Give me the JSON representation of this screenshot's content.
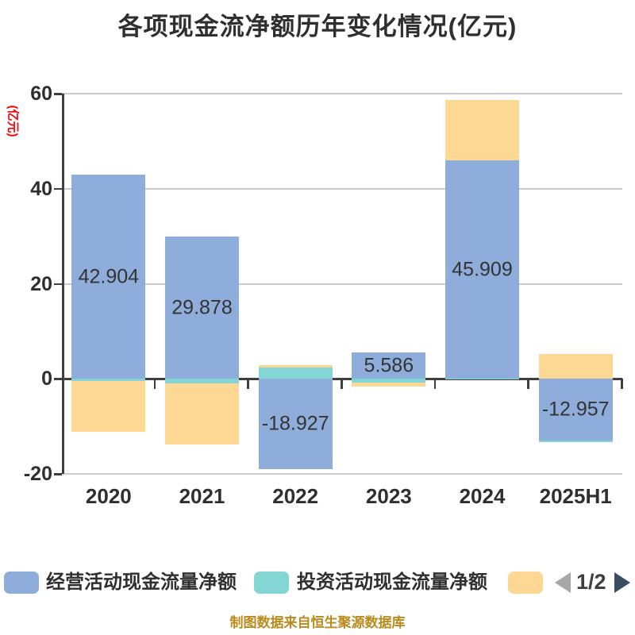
{
  "title": "各项现金流净额历年变化情况(亿元)",
  "y_axis": {
    "name": "(亿元)",
    "name_color": "#ff0000",
    "tick_labels": [
      "60",
      "40",
      "20",
      "0",
      "-20"
    ]
  },
  "chart_data": {
    "type": "bar",
    "stacked": true,
    "title": "各项现金流净额历年变化情况(亿元)",
    "ylabel": "(亿元)",
    "xlabel": "",
    "ylim": [
      -20,
      60
    ],
    "yticks": [
      60,
      40,
      20,
      0,
      -20
    ],
    "grid": true,
    "legend_position": "bottom",
    "categories": [
      "2020",
      "2021",
      "2022",
      "2023",
      "2024",
      "2025H1"
    ],
    "series": [
      {
        "name": "经营活动现金流量净额",
        "color": "#8EADDB",
        "values": [
          42.904,
          29.878,
          -18.927,
          5.586,
          45.909,
          -12.957
        ],
        "data_labels": [
          "42.904",
          "29.878",
          "-18.927",
          "5.586",
          "45.909",
          "-12.957"
        ]
      },
      {
        "name": "投资活动现金流量净额",
        "color": "#84D6D4",
        "values": [
          -0.5,
          -1.0,
          2.3,
          -0.8,
          -0.2,
          -0.3
        ],
        "estimated": true
      },
      {
        "name": "",
        "color": "#FDD794",
        "values": [
          -10.7,
          -12.9,
          0.5,
          -0.9,
          12.7,
          5.2
        ],
        "estimated": true
      }
    ]
  },
  "colors": {
    "grid": "#cbcbcb",
    "axis": "#3f3f3f",
    "label": "#333333"
  },
  "legend": {
    "items": [
      {
        "label": "经营活动现金流量净额",
        "color": "#8EADDB"
      },
      {
        "label": "投资活动现金流量净额",
        "color": "#84D6D4"
      },
      {
        "label": "",
        "color": "#FDD794"
      }
    ],
    "pagination": {
      "label": "1/2",
      "prev_color": "#a7a7a7",
      "next_color": "#3a4d63"
    }
  },
  "footer": "制图数据来自恒生聚源数据库",
  "footer_color": "#BB8A1B"
}
